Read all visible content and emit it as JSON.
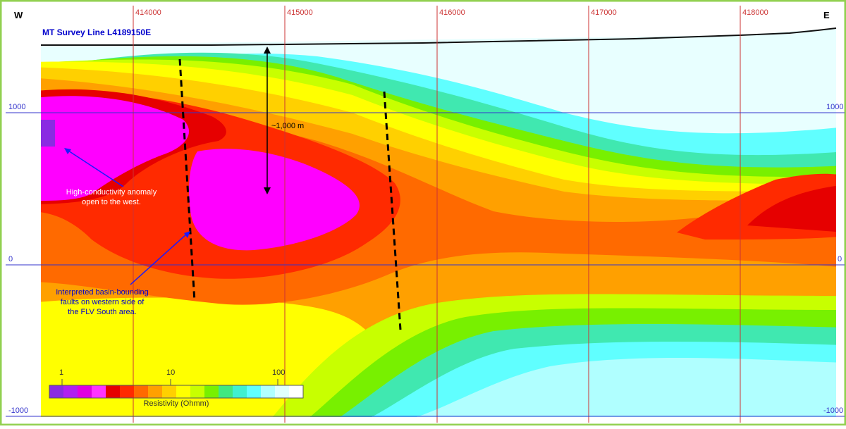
{
  "compass": {
    "west": "W",
    "east": "E"
  },
  "title": "MT Survey Line L4189150E",
  "eastings": [
    "414000",
    "415000",
    "416000",
    "417000",
    "418000"
  ],
  "elevations": [
    "1000",
    "0",
    "-1000"
  ],
  "annotations": {
    "depth_label": "~1,000 m",
    "anomaly_line1": "High-conductivity anomaly",
    "anomaly_line2": "open to the west.",
    "faults_line1": "Interpreted basin-bounding",
    "faults_line2": "faults on western side of",
    "faults_line3": "the FLV South area."
  },
  "legend": {
    "title": "Resistivity (Ohmm)",
    "ticks": [
      "1",
      "10",
      "100"
    ],
    "colors": [
      "#8a2be2",
      "#b020f0",
      "#e000e0",
      "#ff33ff",
      "#e60000",
      "#ff2a00",
      "#ff6a00",
      "#ffa000",
      "#ffd000",
      "#ffff00",
      "#c8ff00",
      "#78f000",
      "#40e880",
      "#40f0d0",
      "#60ffff",
      "#b0ffff",
      "#e0ffff",
      "#ffffff"
    ]
  },
  "colors": {
    "frame": "#92d050",
    "grid_vertical": "#cc3333",
    "grid_horizontal": "#3333cc",
    "annotation_text": "#0000cc",
    "conductor": "#ff00ff",
    "deep_conductor": "#8a2be2"
  }
}
